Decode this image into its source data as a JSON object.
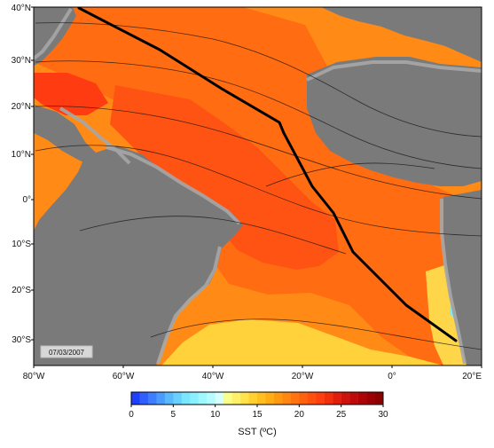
{
  "map": {
    "date_label": "07/03/2007",
    "lat_ticks": [
      "40°N",
      "30°N",
      "20°N",
      "10°N",
      "0°",
      "10°S",
      "20°S",
      "30°S"
    ],
    "lon_ticks": [
      "80°W",
      "60°W",
      "40°W",
      "20°W",
      "0°",
      "20°E"
    ],
    "colors": {
      "land": "#7a7a7a",
      "shelf": "#a7a7a7",
      "route": "#000000",
      "frame": "#000000"
    },
    "route_label": ""
  },
  "colorbar": {
    "ticks": [
      "0",
      "5",
      "10",
      "15",
      "20",
      "25",
      "30"
    ],
    "label": "SST (ºC)",
    "range": [
      0,
      30
    ],
    "colors": [
      "#1f3fff",
      "#2f5fff",
      "#3d7dff",
      "#4b9aff",
      "#5ab8ff",
      "#69d1ff",
      "#7ae6ff",
      "#8af0ff",
      "#9ff7ff",
      "#b6fbff",
      "#d6ffff",
      "#f7ff8a",
      "#fff06a",
      "#ffe24c",
      "#ffd130",
      "#ffbf1f",
      "#ffad16",
      "#ff9912",
      "#ff8711",
      "#ff7410",
      "#ff620f",
      "#ff500e",
      "#ff3f0d",
      "#f22e0c",
      "#e01e0b",
      "#cf120b",
      "#bf0a09",
      "#ad0407",
      "#9c0005",
      "#8b0000"
    ]
  }
}
